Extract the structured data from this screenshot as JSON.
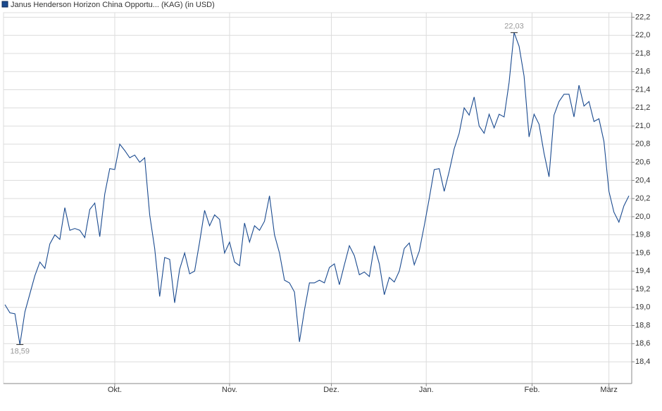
{
  "chart_data": {
    "type": "line",
    "title": "Janus Henderson Horizon China Opportu... (KAG) (in USD)",
    "series": [
      {
        "name": "Janus Henderson Horizon China Opportu... (KAG) (in USD)",
        "color": "#1a4a8f",
        "values": [
          19.03,
          18.94,
          18.93,
          18.59,
          18.95,
          19.15,
          19.35,
          19.5,
          19.43,
          19.7,
          19.8,
          19.75,
          20.1,
          19.85,
          19.87,
          19.85,
          19.77,
          20.08,
          20.15,
          19.78,
          20.25,
          20.53,
          20.52,
          20.8,
          20.73,
          20.65,
          20.68,
          20.6,
          20.65,
          20.02,
          19.65,
          19.12,
          19.55,
          19.53,
          19.05,
          19.42,
          19.6,
          19.37,
          19.4,
          19.72,
          20.07,
          19.9,
          20.02,
          19.97,
          19.6,
          19.72,
          19.5,
          19.46,
          19.93,
          19.72,
          19.9,
          19.85,
          19.95,
          20.23,
          19.8,
          19.6,
          19.3,
          19.27,
          19.17,
          18.62,
          18.97,
          19.27,
          19.27,
          19.3,
          19.27,
          19.44,
          19.48,
          19.25,
          19.47,
          19.68,
          19.57,
          19.36,
          19.39,
          19.34,
          19.68,
          19.48,
          19.14,
          19.33,
          19.28,
          19.4,
          19.65,
          19.71,
          19.47,
          19.62,
          19.9,
          20.2,
          20.52,
          20.53,
          20.28,
          20.5,
          20.75,
          20.92,
          21.2,
          21.12,
          21.32,
          21.0,
          20.92,
          21.13,
          20.98,
          21.13,
          21.1,
          21.48,
          22.03,
          21.88,
          21.55,
          20.88,
          21.13,
          21.02,
          20.7,
          20.44,
          21.12,
          21.27,
          21.35,
          21.35,
          21.1,
          21.45,
          21.22,
          21.27,
          21.05,
          21.08,
          20.83,
          20.28,
          20.05,
          19.94,
          20.12,
          20.23
        ]
      }
    ],
    "xlim": [
      0,
      125
    ],
    "xticks": [
      {
        "value": 22,
        "label": "Okt."
      },
      {
        "value": 45,
        "label": "Nov."
      },
      {
        "value": 65.4,
        "label": "Dez."
      },
      {
        "value": 84.4,
        "label": "Jan."
      },
      {
        "value": 105.6,
        "label": "Feb."
      },
      {
        "value": 121,
        "label": "März"
      }
    ],
    "ylim": [
      18.16,
      22.25
    ],
    "yticks": [
      {
        "value": 18.4,
        "label": "18,4"
      },
      {
        "value": 18.6,
        "label": "18,6"
      },
      {
        "value": 18.8,
        "label": "18,8"
      },
      {
        "value": 19.0,
        "label": "19,0"
      },
      {
        "value": 19.2,
        "label": "19,2"
      },
      {
        "value": 19.4,
        "label": "19,4"
      },
      {
        "value": 19.6,
        "label": "19,6"
      },
      {
        "value": 19.8,
        "label": "19,8"
      },
      {
        "value": 20.0,
        "label": "20,0"
      },
      {
        "value": 20.2,
        "label": "20,2"
      },
      {
        "value": 20.4,
        "label": "20,4"
      },
      {
        "value": 20.6,
        "label": "20,6"
      },
      {
        "value": 20.8,
        "label": "20,8"
      },
      {
        "value": 21.0,
        "label": "21,0"
      },
      {
        "value": 21.2,
        "label": "21,2"
      },
      {
        "value": 21.4,
        "label": "21,4"
      },
      {
        "value": 21.6,
        "label": "21,6"
      },
      {
        "value": 21.8,
        "label": "21,8"
      },
      {
        "value": 22.0,
        "label": "22,0"
      },
      {
        "value": 22.2,
        "label": "22,2"
      }
    ],
    "annotations": [
      {
        "text": "22,03",
        "x": 102,
        "y": 22.03
      },
      {
        "text": "18,59",
        "x": 3,
        "y": 18.59
      }
    ],
    "grid": true
  }
}
